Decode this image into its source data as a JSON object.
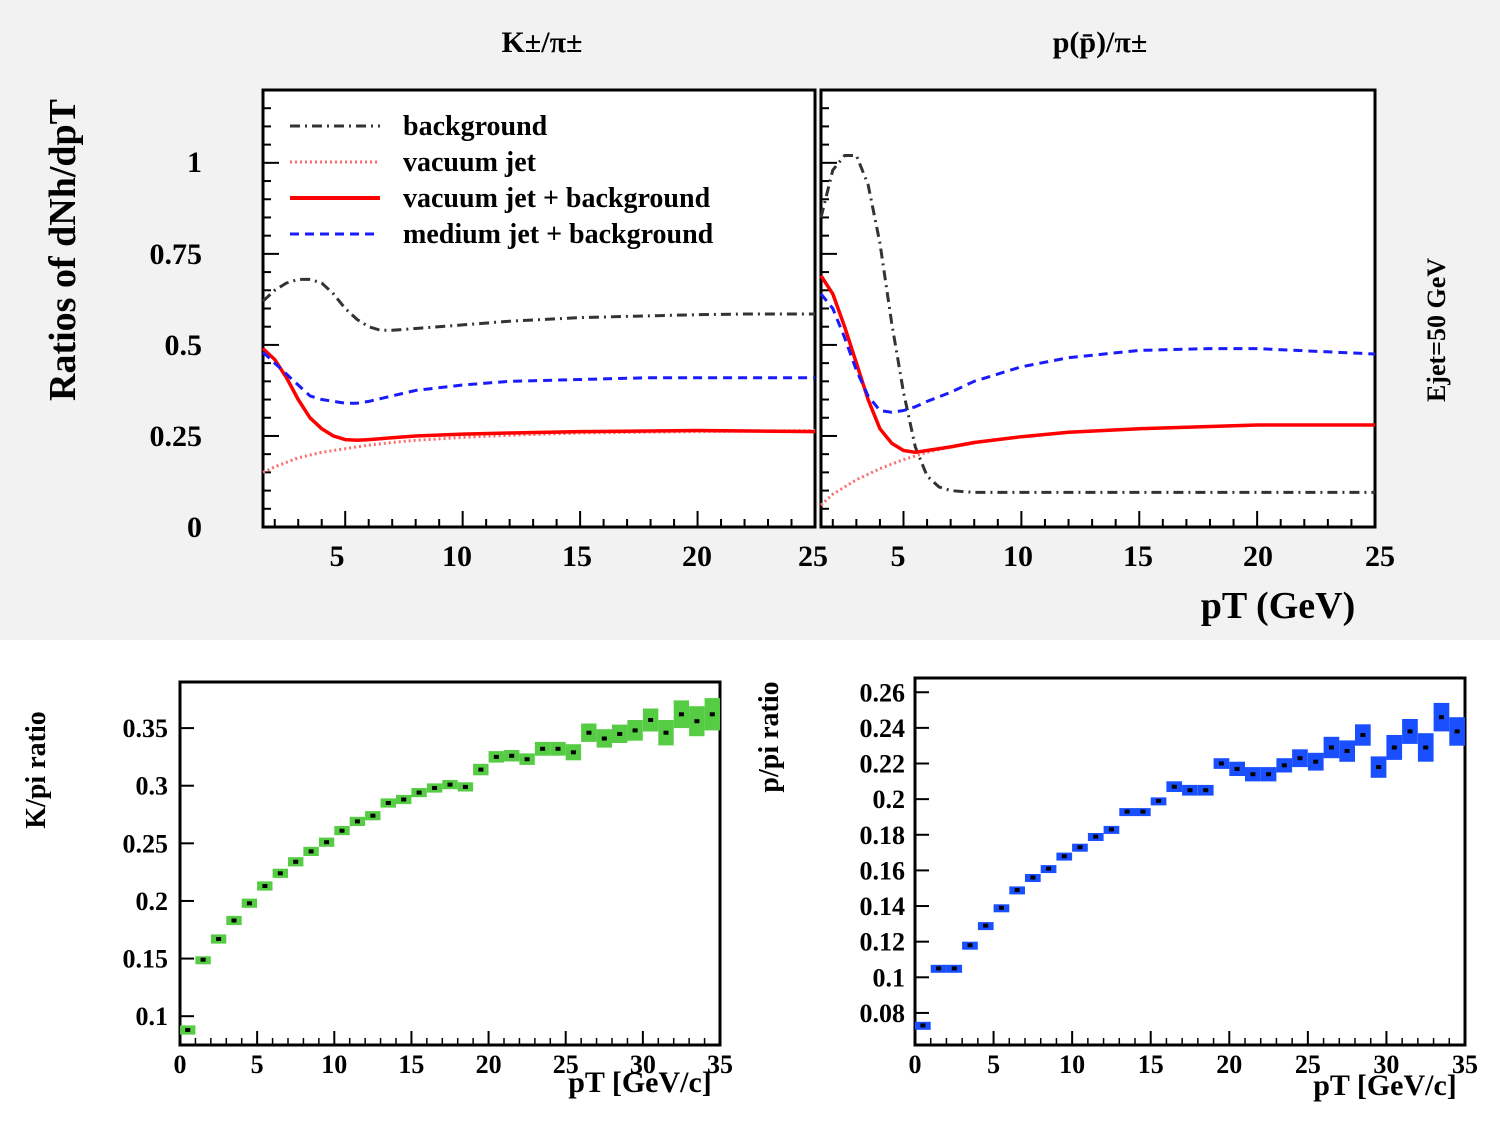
{
  "chart_data": [
    {
      "type": "line",
      "panel": "top-left",
      "title": "K±/π±",
      "ylabel": "Ratios of dNh/dpT",
      "xlim": [
        1.5,
        25
      ],
      "ylim": [
        0,
        1.2
      ],
      "xticks": [
        "5",
        "10",
        "15",
        "20",
        "25"
      ],
      "yticks": [
        "0",
        "0.25",
        "0.5",
        "0.75",
        "1"
      ],
      "legend": [
        "background",
        "vacuum jet",
        "vacuum jet + background",
        "medium jet + background"
      ],
      "series": [
        {
          "name": "background",
          "color": "#333333",
          "x": [
            1.5,
            2,
            2.5,
            3,
            3.5,
            4,
            4.5,
            5,
            5.5,
            6,
            6.5,
            7,
            8,
            10,
            12,
            15,
            18,
            20,
            22,
            25
          ],
          "y": [
            0.62,
            0.65,
            0.67,
            0.68,
            0.68,
            0.67,
            0.64,
            0.6,
            0.57,
            0.55,
            0.54,
            0.54,
            0.545,
            0.555,
            0.565,
            0.575,
            0.58,
            0.583,
            0.585,
            0.585
          ]
        },
        {
          "name": "vacuum jet",
          "color": "#ff6a6a",
          "x": [
            1.5,
            2,
            3,
            4,
            5,
            6,
            7,
            8,
            10,
            12,
            15,
            20,
            25
          ],
          "y": [
            0.15,
            0.165,
            0.19,
            0.205,
            0.215,
            0.225,
            0.232,
            0.238,
            0.246,
            0.252,
            0.258,
            0.262,
            0.265
          ]
        },
        {
          "name": "vacuum jet + background",
          "color": "#ff0000",
          "x": [
            1.5,
            2,
            2.5,
            3,
            3.5,
            4,
            4.5,
            5,
            5.5,
            6,
            7,
            8,
            10,
            12,
            15,
            20,
            25
          ],
          "y": [
            0.49,
            0.46,
            0.41,
            0.35,
            0.3,
            0.27,
            0.25,
            0.24,
            0.238,
            0.24,
            0.245,
            0.25,
            0.255,
            0.258,
            0.262,
            0.265,
            0.262
          ]
        },
        {
          "name": "medium jet + background",
          "color": "#1a1aff",
          "x": [
            1.5,
            2,
            2.5,
            3,
            3.5,
            4,
            4.5,
            5,
            5.5,
            6,
            7,
            8,
            10,
            12,
            15,
            18,
            20,
            25
          ],
          "y": [
            0.48,
            0.45,
            0.42,
            0.39,
            0.36,
            0.35,
            0.345,
            0.34,
            0.34,
            0.345,
            0.36,
            0.375,
            0.39,
            0.4,
            0.405,
            0.41,
            0.41,
            0.41
          ]
        }
      ]
    },
    {
      "type": "line",
      "panel": "top-right",
      "title": "p(p̄)/π±",
      "xlabel": "pT (GeV)",
      "side_label": "Ejet=50 GeV",
      "xlim": [
        1.5,
        25
      ],
      "ylim": [
        0,
        1.2
      ],
      "xticks": [
        "5",
        "10",
        "15",
        "20",
        "25"
      ],
      "series": [
        {
          "name": "background",
          "color": "#333333",
          "x": [
            1.5,
            2,
            2.5,
            3,
            3.5,
            4,
            4.5,
            5,
            5.5,
            6,
            6.5,
            7,
            8,
            10,
            15,
            20,
            25
          ],
          "y": [
            0.85,
            0.98,
            1.02,
            1.02,
            0.94,
            0.78,
            0.56,
            0.37,
            0.22,
            0.14,
            0.11,
            0.1,
            0.095,
            0.095,
            0.095,
            0.095,
            0.095
          ]
        },
        {
          "name": "vacuum jet",
          "color": "#ff6a6a",
          "x": [
            1.5,
            2,
            3,
            4,
            5,
            6,
            7,
            8
          ],
          "y": [
            0.06,
            0.09,
            0.13,
            0.16,
            0.185,
            0.205,
            0.22,
            0.23
          ]
        },
        {
          "name": "vacuum jet + background",
          "color": "#ff0000",
          "x": [
            1.5,
            2,
            2.5,
            3,
            3.5,
            4,
            4.5,
            5,
            5.5,
            6,
            7,
            8,
            10,
            12,
            15,
            20,
            25
          ],
          "y": [
            0.69,
            0.64,
            0.55,
            0.45,
            0.35,
            0.27,
            0.23,
            0.21,
            0.205,
            0.21,
            0.22,
            0.232,
            0.248,
            0.26,
            0.27,
            0.28,
            0.28
          ]
        },
        {
          "name": "medium jet + background",
          "color": "#1a1aff",
          "x": [
            1.5,
            2,
            2.5,
            3,
            3.5,
            4,
            4.5,
            5,
            5.5,
            6,
            7,
            8,
            10,
            12,
            15,
            18,
            20,
            25
          ],
          "y": [
            0.64,
            0.6,
            0.52,
            0.43,
            0.36,
            0.32,
            0.315,
            0.32,
            0.33,
            0.345,
            0.37,
            0.4,
            0.44,
            0.465,
            0.485,
            0.49,
            0.49,
            0.475
          ]
        }
      ]
    },
    {
      "type": "scatter",
      "panel": "bottom-left",
      "ylabel": "K/pi ratio",
      "xlabel": "pT [GeV/c]",
      "xlim": [
        0,
        35
      ],
      "ylim": [
        0.075,
        0.39
      ],
      "xticks": [
        "0",
        "5",
        "10",
        "15",
        "20",
        "25",
        "30",
        "35"
      ],
      "yticks": [
        "0.1",
        "0.15",
        "0.2",
        "0.25",
        "0.3",
        "0.35"
      ],
      "color": "#55cc44",
      "x": [
        0.5,
        1.5,
        2.5,
        3.5,
        4.5,
        5.5,
        6.5,
        7.5,
        8.5,
        9.5,
        10.5,
        11.5,
        12.5,
        13.5,
        14.5,
        15.5,
        16.5,
        17.5,
        18.5,
        19.5,
        20.5,
        21.5,
        22.5,
        23.5,
        24.5,
        25.5,
        26.5,
        27.5,
        28.5,
        29.5,
        30.5,
        31.5,
        32.5,
        33.5,
        34.5
      ],
      "y": [
        0.088,
        0.149,
        0.167,
        0.183,
        0.198,
        0.213,
        0.224,
        0.234,
        0.243,
        0.251,
        0.261,
        0.269,
        0.274,
        0.285,
        0.288,
        0.294,
        0.298,
        0.301,
        0.299,
        0.314,
        0.325,
        0.326,
        0.323,
        0.332,
        0.332,
        0.329,
        0.346,
        0.341,
        0.345,
        0.348,
        0.357,
        0.346,
        0.362,
        0.356,
        0.362
      ],
      "err": [
        0.004,
        0.003,
        0.004,
        0.004,
        0.004,
        0.004,
        0.004,
        0.004,
        0.004,
        0.004,
        0.004,
        0.004,
        0.004,
        0.004,
        0.004,
        0.004,
        0.004,
        0.004,
        0.004,
        0.005,
        0.005,
        0.005,
        0.005,
        0.006,
        0.006,
        0.007,
        0.008,
        0.008,
        0.008,
        0.009,
        0.01,
        0.011,
        0.012,
        0.013,
        0.014
      ]
    },
    {
      "type": "scatter",
      "panel": "bottom-right",
      "ylabel": "p/pi ratio",
      "xlabel": "pT [GeV/c]",
      "xlim": [
        0,
        35
      ],
      "ylim": [
        0.062,
        0.268
      ],
      "xticks": [
        "0",
        "5",
        "10",
        "15",
        "20",
        "25",
        "30",
        "35"
      ],
      "yticks": [
        "0.08",
        "0.1",
        "0.12",
        "0.14",
        "0.16",
        "0.18",
        "0.2",
        "0.22",
        "0.24",
        "0.26"
      ],
      "color": "#1a4fff",
      "x": [
        0.5,
        1.5,
        2.5,
        3.5,
        4.5,
        5.5,
        6.5,
        7.5,
        8.5,
        9.5,
        10.5,
        11.5,
        12.5,
        13.5,
        14.5,
        15.5,
        16.5,
        17.5,
        18.5,
        19.5,
        20.5,
        21.5,
        22.5,
        23.5,
        24.5,
        25.5,
        26.5,
        27.5,
        28.5,
        29.5,
        30.5,
        31.5,
        32.5,
        33.5,
        34.5
      ],
      "y": [
        0.073,
        0.105,
        0.105,
        0.118,
        0.129,
        0.139,
        0.149,
        0.156,
        0.161,
        0.168,
        0.173,
        0.179,
        0.183,
        0.193,
        0.193,
        0.199,
        0.207,
        0.205,
        0.205,
        0.22,
        0.217,
        0.214,
        0.214,
        0.219,
        0.223,
        0.221,
        0.229,
        0.227,
        0.236,
        0.218,
        0.229,
        0.238,
        0.229,
        0.246,
        0.238
      ],
      "err": [
        0.002,
        0.002,
        0.002,
        0.002,
        0.002,
        0.002,
        0.002,
        0.002,
        0.002,
        0.002,
        0.002,
        0.002,
        0.002,
        0.002,
        0.002,
        0.002,
        0.003,
        0.003,
        0.003,
        0.003,
        0.004,
        0.004,
        0.004,
        0.004,
        0.005,
        0.005,
        0.006,
        0.006,
        0.006,
        0.006,
        0.007,
        0.007,
        0.008,
        0.008,
        0.008
      ]
    }
  ]
}
